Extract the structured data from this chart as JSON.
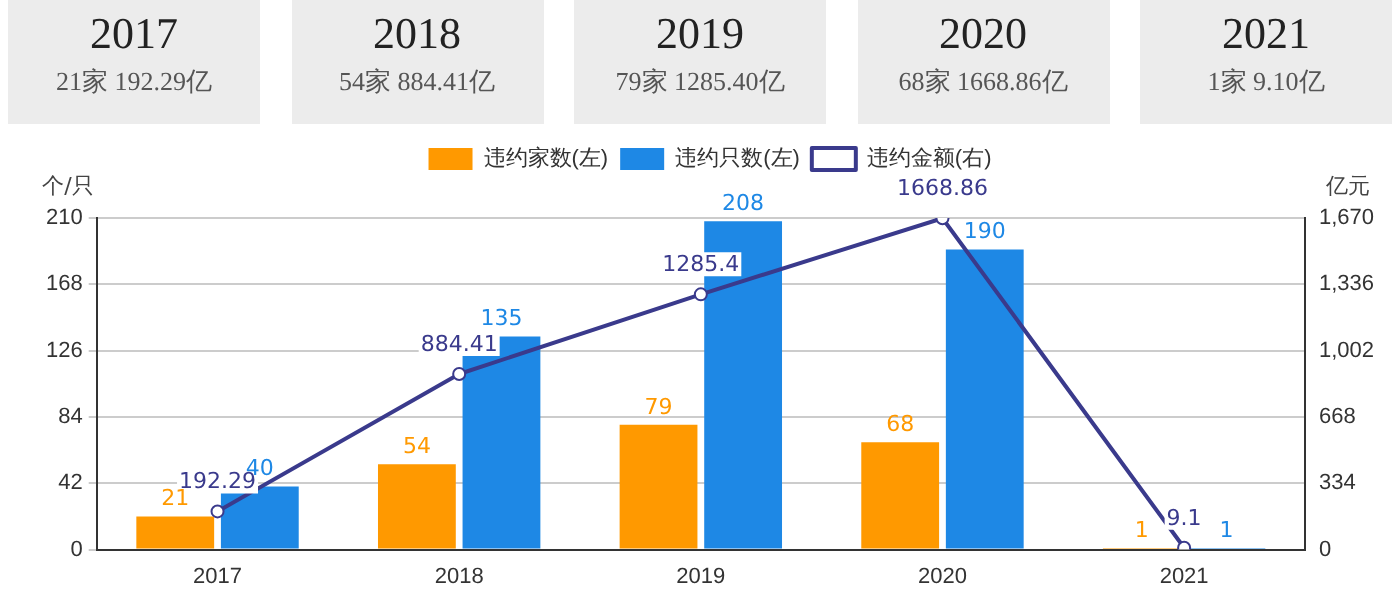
{
  "chart_data": {
    "type": "bar",
    "categories": [
      "2017",
      "2018",
      "2019",
      "2020",
      "2021"
    ],
    "annotations": [
      "2017",
      "21家 192.29亿",
      "2018",
      "54家 884.41亿",
      "2019",
      "79家 1285.40亿",
      "2020",
      "68家 1668.86亿",
      "2021",
      "1家 9.10亿"
    ],
    "series": [
      {
        "name": "违约家数(左)",
        "color": "#ff9900",
        "values": [
          21,
          54,
          79,
          68,
          1
        ]
      },
      {
        "name": "违约只数(左)",
        "color": "#1e88e5",
        "values": [
          40,
          135,
          208,
          190,
          1
        ]
      },
      {
        "name": "违约金额(右)",
        "type": "line",
        "axis": "y2",
        "color": "#3a3a8c",
        "values": [
          192.29,
          884.41,
          1285.4,
          1668.86,
          9.1
        ]
      }
    ],
    "ylabel": "个/只",
    "y2label": "亿元",
    "ylim": [
      0,
      210
    ],
    "yticks": [
      0,
      42,
      84,
      126,
      168,
      210
    ],
    "y2lim": [
      0,
      1670
    ],
    "y2ticks": [
      0,
      334,
      668,
      {
        "value": 1002,
        "label": "1,002"
      },
      {
        "value": 1336,
        "label": "1,336"
      },
      {
        "value": 1670,
        "label": "1,670"
      }
    ],
    "grid": "y",
    "legend": "top",
    "marker": "circle",
    "data_labels": true
  }
}
